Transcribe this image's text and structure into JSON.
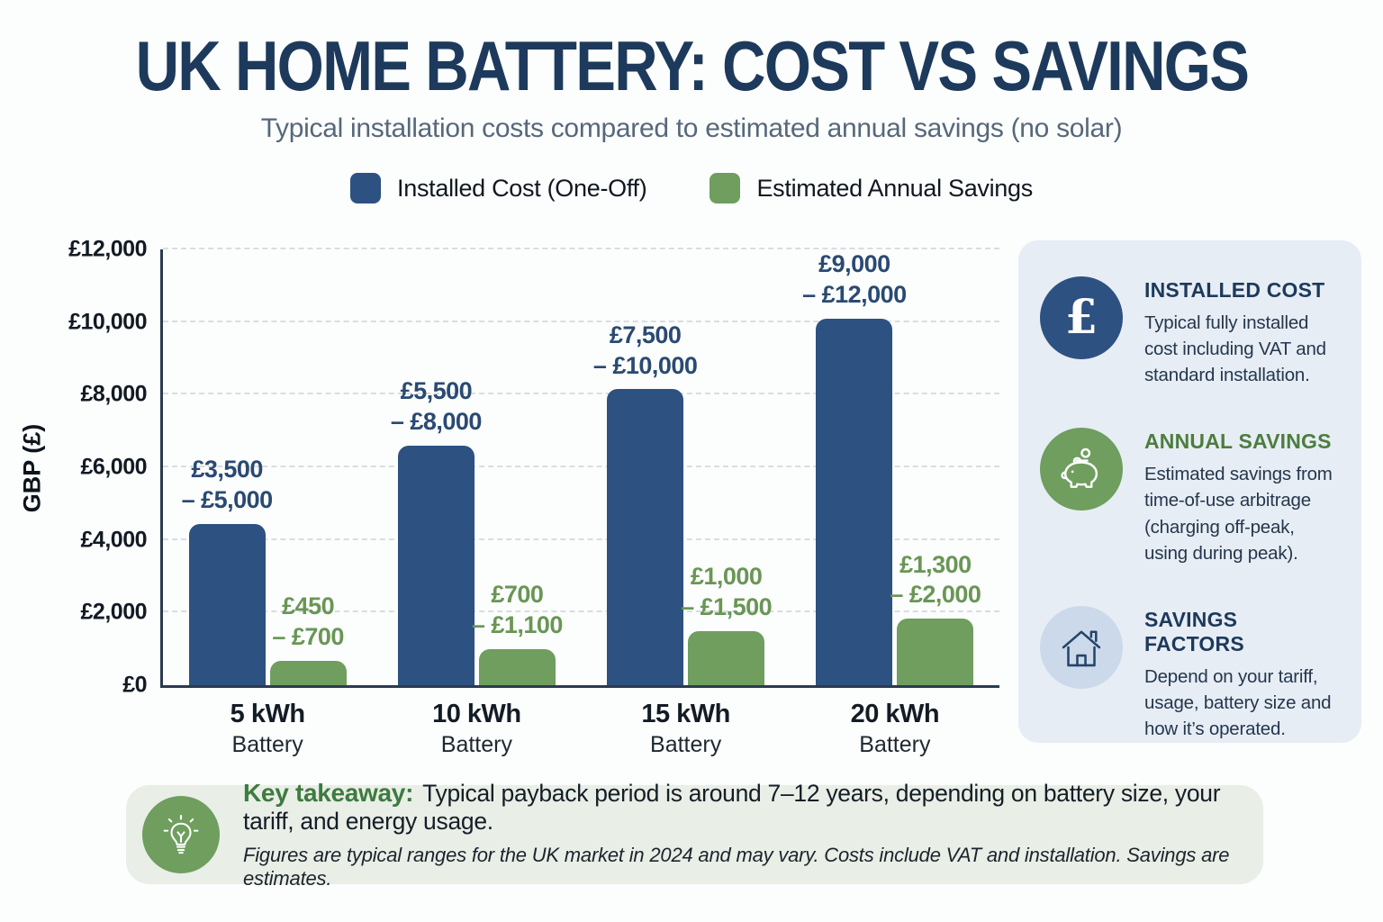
{
  "title": "UK HOME BATTERY: COST VS SAVINGS",
  "subtitle": "Typical installation costs compared to estimated annual savings (no solar)",
  "chart_data": {
    "type": "bar",
    "title": "UK Home Battery: Cost vs Savings",
    "categories": [
      "5 kWh",
      "10 kWh",
      "15 kWh",
      "20 kWh"
    ],
    "category_sub": "Battery",
    "ylabel": "GBP (£)",
    "ylim": [
      0,
      12000
    ],
    "grid": "dashed horizontal",
    "legend_position": "top center",
    "yticks": [
      {
        "label": "£0",
        "value": 0
      },
      {
        "label": "£2,000",
        "value": 2000
      },
      {
        "label": "£4,000",
        "value": 4000
      },
      {
        "label": "£6,000",
        "value": 6000
      },
      {
        "label": "£8,000",
        "value": 8000
      },
      {
        "label": "£10,000",
        "value": 10000
      },
      {
        "label": "£12,000",
        "value": 12000
      }
    ],
    "series": [
      {
        "name": "Installed Cost (One-Off)",
        "color": "#2d5181",
        "label_color": "#2a4a72",
        "bar_values": [
          4450,
          6600,
          8150,
          10250
        ],
        "ranges": [
          [
            3500,
            5000
          ],
          [
            5500,
            8000
          ],
          [
            7500,
            10000
          ],
          [
            9000,
            12000
          ]
        ],
        "labels": [
          [
            "£3,500",
            "– £5,000"
          ],
          [
            "£5,500",
            "– £8,000"
          ],
          [
            "£7,500",
            "– £10,000"
          ],
          [
            "£9,000",
            "– £12,000"
          ]
        ]
      },
      {
        "name": "Estimated Annual Savings",
        "color": "#6f9e5e",
        "label_color": "#699655",
        "bar_values": [
          680,
          1000,
          1500,
          1830
        ],
        "ranges": [
          [
            450,
            700
          ],
          [
            700,
            1100
          ],
          [
            1000,
            1500
          ],
          [
            1300,
            2000
          ]
        ],
        "labels": [
          [
            "£450",
            "– £700"
          ],
          [
            "£700",
            "– £1,100"
          ],
          [
            "£1,000",
            "– £1,500"
          ],
          [
            "£1,300",
            "– £2,000"
          ]
        ]
      }
    ]
  },
  "sidebar": {
    "items": [
      {
        "icon": "pound-icon",
        "heading": "INSTALLED COST",
        "body": "Typical fully installed cost including VAT and standard installation."
      },
      {
        "icon": "piggy-bank-icon",
        "heading": "ANNUAL SAVINGS",
        "body": "Estimated savings from time-of-use arbitrage (charging off-peak, using during peak)."
      },
      {
        "icon": "house-icon",
        "heading": "SAVINGS FACTORS",
        "body": "Depend on your tariff, usage, battery size and how it’s operated."
      }
    ]
  },
  "takeaway": {
    "icon": "lightbulb-icon",
    "label": "Key takeaway:",
    "text": "Typical payback period is around 7–12 years, depending on battery size, your tariff, and energy usage.",
    "footnote": "Figures are typical ranges for the UK market in 2024 and may vary. Costs include VAT and installation. Savings are estimates."
  }
}
